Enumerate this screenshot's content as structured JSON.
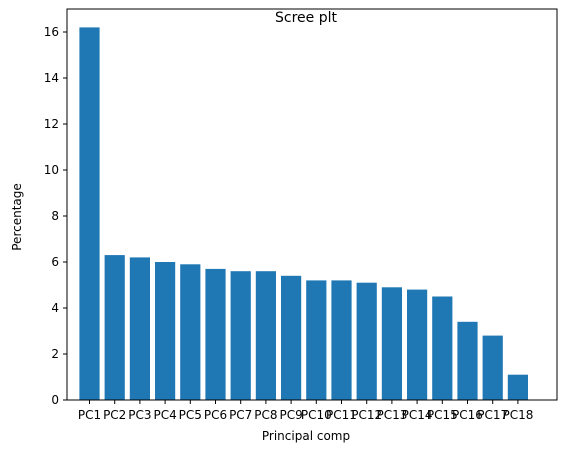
{
  "chart_data": {
    "type": "bar",
    "title": "Scree plt",
    "xlabel": "Principal comp",
    "ylabel": "Percentage",
    "categories": [
      "PC1",
      "PC2",
      "PC3",
      "PC4",
      "PC5",
      "PC6",
      "PC7",
      "PC8",
      "PC9",
      "PC10",
      "PC11",
      "PC12",
      "PC13",
      "PC14",
      "PC15",
      "PC16",
      "PC17",
      "PC18"
    ],
    "values": [
      16.2,
      6.3,
      6.2,
      6.0,
      5.9,
      5.7,
      5.6,
      5.6,
      5.4,
      5.2,
      5.2,
      5.1,
      4.9,
      4.8,
      4.5,
      3.4,
      2.8,
      1.1
    ],
    "ylim": [
      0,
      17
    ],
    "yticks": [
      0,
      2,
      4,
      6,
      8,
      10,
      12,
      14,
      16
    ],
    "grid": false,
    "bar_color": "#1f77b4"
  }
}
